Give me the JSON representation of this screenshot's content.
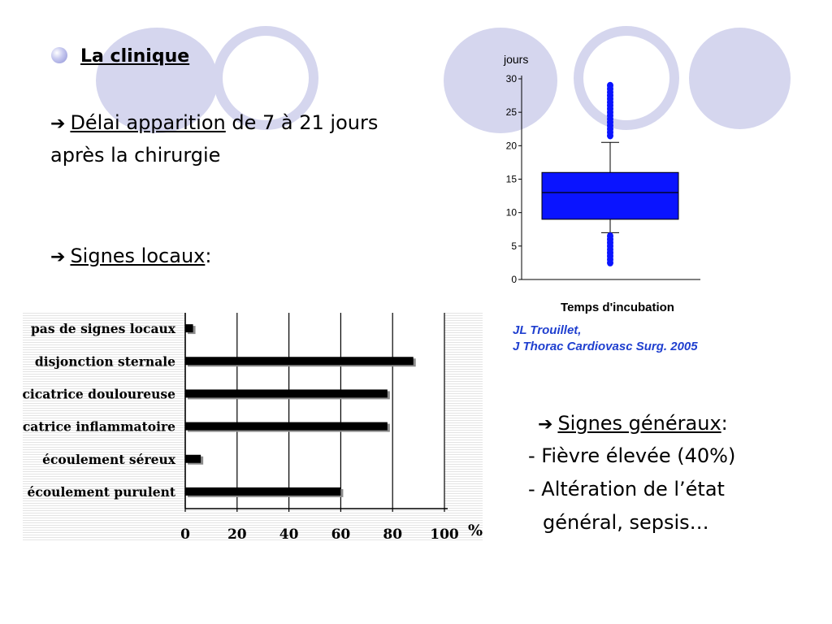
{
  "heading": "La clinique",
  "arrow_glyph": "➔",
  "line1": {
    "underlined": "Délai apparition",
    "rest": " de 7 à 21 jours"
  },
  "line2": "après la chirurgie",
  "local_signs": {
    "underlined": "Signes locaux",
    "rest": ":"
  },
  "general_signs": {
    "title_underlined": "Signes généraux",
    "title_rest": ":",
    "items": [
      "- Fièvre élevée (40%)",
      "- Altération de l’état",
      "général, sepsis…"
    ]
  },
  "citation": {
    "line1": "JL Trouillet,",
    "line2": "J Thorac Cardiovasc Surg. 2005"
  },
  "colors": {
    "deco": "#d5d6ee",
    "box_fill": "#0a14ff",
    "citation": "#1f3fcf"
  },
  "chart_data": [
    {
      "type": "bar",
      "orientation": "horizontal",
      "categories": [
        "pas de signes locaux",
        "disjonction sternale",
        "cicatrice douloureuse",
        "cicatrice inflammatoire",
        "écoulement séreux",
        "écoulement purulent"
      ],
      "values": [
        3,
        88,
        78,
        78,
        6,
        60
      ],
      "x_ticks": [
        0,
        20,
        40,
        60,
        80,
        100
      ],
      "x_unit": "%",
      "xlim": [
        0,
        100
      ],
      "grid": "vertical"
    },
    {
      "type": "boxplot",
      "ylabel": "jours",
      "xlabel": "Temps d'incubation",
      "y_ticks": [
        0,
        5,
        10,
        15,
        20,
        25,
        30
      ],
      "ylim": [
        0,
        30
      ],
      "whisker_low": 7,
      "q1": 9,
      "median": 13,
      "q3": 16,
      "whisker_high": 20.5,
      "outliers_low": [
        2.5,
        3,
        3.5,
        4,
        4.5,
        5,
        5.5,
        6,
        6.5
      ],
      "outliers_high": [
        21.5,
        22,
        22.5,
        23,
        23.5,
        24,
        24.5,
        25,
        25.5,
        26,
        26.5,
        27,
        27.5,
        28,
        28.5,
        29
      ]
    }
  ]
}
